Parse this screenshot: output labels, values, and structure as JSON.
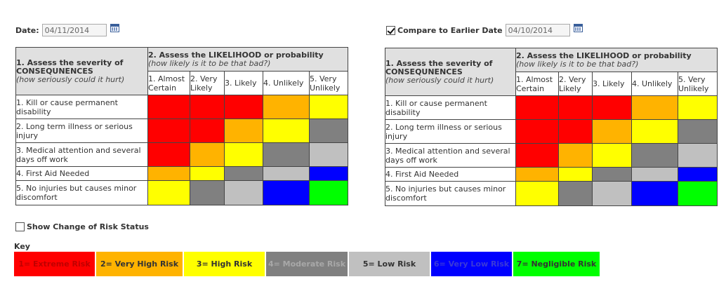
{
  "date": {
    "label": "Date:",
    "value": "04/11/2014"
  },
  "compare": {
    "label": "Compare to Earlier Date",
    "value": "04/10/2014",
    "checked": true
  },
  "matrix": {
    "severity_title": "1. Assess the severity of CONSEQUNENCES",
    "severity_sub": "(how seriously could it hurt)",
    "likelihood_title": "2. Assess the LIKELIHOOD or probability",
    "likelihood_sub": "(how likely is it to be that bad?)",
    "likelihoods": [
      "1. Almost Certain",
      "2. Very Likely",
      "3. Likely",
      "4. Unlikely",
      "5. Very Unlikely"
    ],
    "rows": [
      {
        "label": "1. Kill or cause permanent disability",
        "levels": [
          1,
          1,
          1,
          2,
          3
        ]
      },
      {
        "label": "2. Long term illness or serious injury",
        "levels": [
          1,
          1,
          2,
          3,
          4
        ]
      },
      {
        "label": "3. Medical attention and several days off work",
        "levels": [
          1,
          2,
          3,
          4,
          5
        ]
      },
      {
        "label": "4. First Aid Needed",
        "levels": [
          2,
          3,
          4,
          5,
          6
        ]
      },
      {
        "label": "5. No injuries but causes minor discomfort",
        "levels": [
          3,
          4,
          5,
          6,
          7
        ]
      }
    ]
  },
  "show_change": {
    "label": "Show Change of Risk Status",
    "checked": false
  },
  "key": {
    "title": "Key",
    "items": [
      {
        "level": 1,
        "label": "1= Extreme Risk",
        "bg": "#ff0000",
        "fg": "#c00000"
      },
      {
        "level": 2,
        "label": "2= Very High Risk",
        "bg": "#ffb300",
        "fg": "#333333"
      },
      {
        "level": 3,
        "label": "3= High Risk",
        "bg": "#ffff00",
        "fg": "#333333"
      },
      {
        "level": 4,
        "label": "4= Moderate Risk",
        "bg": "#808080",
        "fg": "#a8a8a8"
      },
      {
        "level": 5,
        "label": "5= Low Risk",
        "bg": "#c0c0c0",
        "fg": "#333333"
      },
      {
        "level": 6,
        "label": "6= Very Low Risk",
        "bg": "#0000ff",
        "fg": "#3a3ad8"
      },
      {
        "level": 7,
        "label": "7= Negligible Risk",
        "bg": "#00ff00",
        "fg": "#333333"
      }
    ]
  }
}
